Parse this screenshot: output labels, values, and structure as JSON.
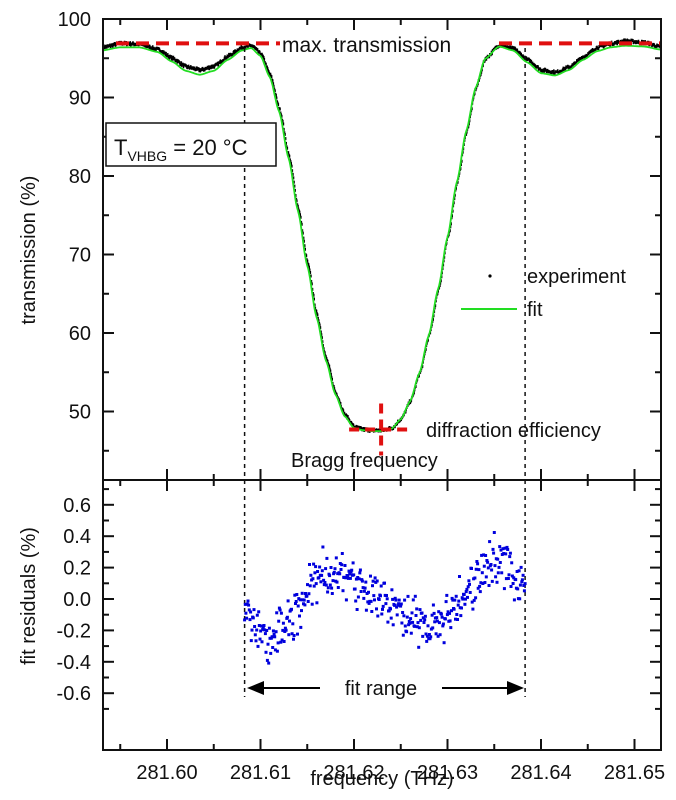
{
  "chart_data": [
    {
      "id": "transmission",
      "type": "line",
      "ylabel": "transmission (%)",
      "xlabel": "",
      "xlim": [
        281.5931,
        281.6528
      ],
      "ylim": [
        41.0,
        100
      ],
      "yticks": [
        50,
        60,
        70,
        80,
        90,
        100
      ],
      "yticks_minor": [
        45,
        55,
        65,
        75,
        85,
        95
      ],
      "xticks": [
        281.6,
        281.61,
        281.62,
        281.63,
        281.64,
        281.65
      ],
      "grid": false,
      "legend": {
        "placement": "right-middle",
        "entries": [
          {
            "label": "experiment",
            "marker": "dot",
            "color": "#000000"
          },
          {
            "label": "fit",
            "marker": "line",
            "color": "#22dd22"
          }
        ]
      },
      "series": [
        {
          "name": "experiment",
          "style": "dots",
          "color": "#000000",
          "x": [
            281.5931,
            281.595,
            281.597,
            281.599,
            281.6005,
            281.602,
            281.6035,
            281.605,
            281.6065,
            281.608,
            281.609,
            281.61,
            281.611,
            281.612,
            281.613,
            281.614,
            281.615,
            281.616,
            281.617,
            281.618,
            281.619,
            281.62,
            281.621,
            281.622,
            281.6229,
            281.624,
            281.625,
            281.626,
            281.627,
            281.628,
            281.629,
            281.63,
            281.631,
            281.632,
            281.633,
            281.634,
            281.6355,
            281.637,
            281.6385,
            281.64,
            281.6415,
            281.643,
            281.6445,
            281.646,
            281.6475,
            281.649,
            281.651,
            281.6528
          ],
          "y": [
            96.4,
            96.9,
            96.8,
            96.1,
            95.0,
            93.9,
            93.5,
            94.0,
            95.3,
            96.4,
            96.6,
            95.5,
            92.8,
            88.4,
            82.5,
            75.8,
            68.8,
            62.2,
            56.6,
            52.3,
            49.5,
            48.0,
            47.7,
            47.6,
            47.6,
            47.9,
            49.1,
            51.4,
            55.0,
            59.8,
            65.7,
            72.3,
            79.3,
            85.8,
            91.3,
            95.0,
            96.7,
            96.2,
            94.8,
            93.5,
            93.2,
            93.9,
            95.2,
            96.4,
            96.9,
            97.2,
            97.0,
            96.4
          ]
        },
        {
          "name": "fit",
          "style": "line",
          "color": "#22dd22",
          "x": [
            281.5931,
            281.595,
            281.597,
            281.599,
            281.6005,
            281.602,
            281.6035,
            281.605,
            281.6065,
            281.608,
            281.609,
            281.61,
            281.611,
            281.612,
            281.613,
            281.614,
            281.615,
            281.616,
            281.617,
            281.618,
            281.619,
            281.62,
            281.621,
            281.622,
            281.6229,
            281.624,
            281.625,
            281.626,
            281.627,
            281.628,
            281.629,
            281.63,
            281.631,
            281.632,
            281.633,
            281.634,
            281.6355,
            281.637,
            281.6385,
            281.64,
            281.6415,
            281.643,
            281.6445,
            281.646,
            281.6475,
            281.649,
            281.651,
            281.6528
          ],
          "y": [
            96.0,
            96.4,
            96.4,
            95.8,
            94.6,
            93.4,
            92.9,
            93.4,
            94.8,
            96.0,
            96.3,
            95.3,
            92.6,
            88.2,
            82.3,
            75.6,
            68.6,
            62.0,
            56.5,
            52.2,
            49.4,
            47.9,
            47.6,
            47.5,
            47.5,
            47.8,
            49.0,
            51.3,
            54.9,
            59.7,
            65.6,
            72.2,
            79.2,
            85.7,
            91.2,
            94.9,
            96.5,
            96.0,
            94.5,
            93.1,
            92.8,
            93.5,
            94.8,
            95.9,
            96.4,
            96.6,
            96.5,
            96.1
          ]
        }
      ],
      "reference_lines": {
        "max_transmission": 96.9,
        "fit_range": [
          281.6083,
          281.6383
        ]
      },
      "annotations": {
        "max_transmission_label": "max. transmission",
        "diffraction_efficiency_label": "diffraction efficiency",
        "bragg_frequency_label": "Bragg frequency",
        "bragg_point": {
          "x": 281.6229,
          "y": 47.7
        },
        "temperature_box": {
          "symbol": "T",
          "subscript": "VHBG",
          "value": " = 20 °C"
        }
      }
    },
    {
      "id": "residuals",
      "type": "scatter",
      "ylabel": "fit residuals (%)",
      "xlabel": "frequency (THz)",
      "xlim": [
        281.5931,
        281.6528
      ],
      "ylim": [
        -0.72,
        0.75
      ],
      "yticks": [
        -0.6,
        -0.4,
        -0.2,
        0.0,
        0.2,
        0.4,
        0.6
      ],
      "yticks_labels": [
        "-0.6",
        "-0.4",
        "-0.2",
        "0.0",
        "0.2",
        "0.4",
        "0.6"
      ],
      "xticks": [
        281.6,
        281.61,
        281.62,
        281.63,
        281.64,
        281.65
      ],
      "xticks_labels": [
        "281.60",
        "281.61",
        "281.62",
        "281.63",
        "281.64",
        "281.65"
      ],
      "grid": false,
      "series": [
        {
          "name": "residuals",
          "color": "#0000dd",
          "trend": {
            "x": [
              281.6083,
              281.6095,
              281.611,
              281.6125,
              281.614,
              281.6155,
              281.617,
              281.6185,
              281.62,
              281.6215,
              281.623,
              281.6245,
              281.626,
              281.6275,
              281.629,
              281.6305,
              281.632,
              281.6335,
              281.635,
              281.6365,
              281.6383
            ],
            "y": [
              -0.05,
              -0.18,
              -0.26,
              -0.22,
              -0.06,
              0.1,
              0.16,
              0.16,
              0.12,
              0.06,
              0.0,
              -0.06,
              -0.12,
              -0.16,
              -0.15,
              -0.08,
              0.04,
              0.18,
              0.26,
              0.22,
              0.08
            ]
          },
          "noise_amplitude": 0.09,
          "point_count": 420
        }
      ],
      "annotations": {
        "fit_range_label": "fit range",
        "fit_range": [
          281.6083,
          281.6383
        ],
        "arrow_y": -0.55
      }
    }
  ]
}
